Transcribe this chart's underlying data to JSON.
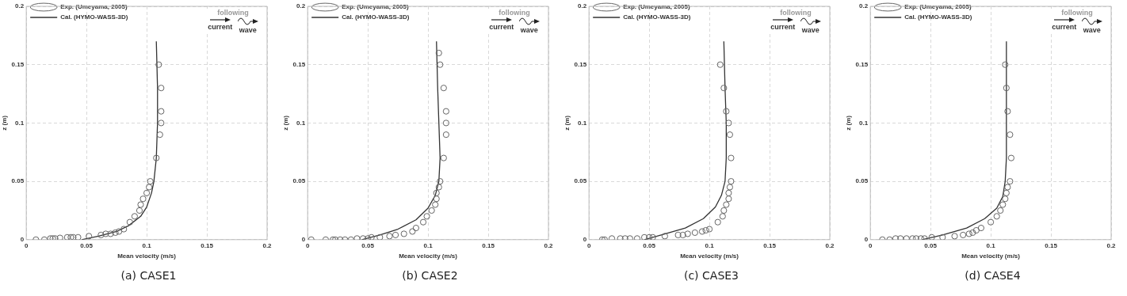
{
  "chart_data": [
    {
      "type": "scatter",
      "title": "(a) CASE1",
      "xlabel": "Mean velocity (m/s)",
      "ylabel": "z (m)",
      "xlim": [
        0,
        0.2
      ],
      "ylim": [
        0,
        0.2
      ],
      "xticks": [
        0,
        0.05,
        0.1,
        0.15,
        0.2
      ],
      "yticks": [
        0,
        0.05,
        0.1,
        0.15,
        0.2
      ],
      "grid": true,
      "legend": "top left",
      "annotations": [
        "following",
        "current",
        "wave"
      ],
      "series": [
        {
          "name": "Exp. (Umeyama, 2005)",
          "type": "scatter",
          "marker": "circle",
          "color": "#666666",
          "x": [
            0.008,
            0.015,
            0.02,
            0.022,
            0.024,
            0.028,
            0.034,
            0.037,
            0.039,
            0.043,
            0.052,
            0.062,
            0.066,
            0.07,
            0.074,
            0.077,
            0.081,
            0.086,
            0.09,
            0.094,
            0.095,
            0.097,
            0.1,
            0.102,
            0.103,
            0.108,
            0.111,
            0.112,
            0.112,
            0.112,
            0.11
          ],
          "values": [
            0,
            0,
            0.001,
            0.001,
            0.001,
            0.0015,
            0.002,
            0.002,
            0.002,
            0.002,
            0.003,
            0.004,
            0.005,
            0.005,
            0.006,
            0.007,
            0.009,
            0.015,
            0.02,
            0.025,
            0.03,
            0.035,
            0.04,
            0.045,
            0.05,
            0.07,
            0.09,
            0.1,
            0.11,
            0.13,
            0.15
          ]
        },
        {
          "name": "Cal. (HYMO-WASS-3D)",
          "type": "line",
          "marker": "none",
          "line_style": "solid",
          "color": "#333333",
          "x": [
            0.046,
            0.06,
            0.075,
            0.085,
            0.095,
            0.1,
            0.104,
            0.106,
            0.108,
            0.109,
            0.109,
            0.108
          ],
          "values": [
            0,
            0.003,
            0.007,
            0.012,
            0.02,
            0.028,
            0.04,
            0.05,
            0.07,
            0.1,
            0.13,
            0.17
          ]
        }
      ]
    },
    {
      "type": "scatter",
      "title": "(b) CASE2",
      "xlabel": "Mean velocity (m/s)",
      "ylabel": "z (m)",
      "xlim": [
        0,
        0.2
      ],
      "ylim": [
        0,
        0.2
      ],
      "xticks": [
        0,
        0.05,
        0.1,
        0.15,
        0.2
      ],
      "yticks": [
        0,
        0.05,
        0.1,
        0.15,
        0.2
      ],
      "grid": true,
      "legend": "top left",
      "annotations": [
        "following",
        "current",
        "wave"
      ],
      "series": [
        {
          "name": "Exp. (Umeyama, 2005)",
          "type": "scatter",
          "marker": "circle",
          "color": "#666666",
          "x": [
            0.003,
            0.015,
            0.021,
            0.023,
            0.027,
            0.031,
            0.036,
            0.041,
            0.046,
            0.05,
            0.053,
            0.06,
            0.068,
            0.073,
            0.08,
            0.087,
            0.09,
            0.096,
            0.099,
            0.103,
            0.106,
            0.107,
            0.107,
            0.109,
            0.11,
            0.113,
            0.115,
            0.115,
            0.115,
            0.113,
            0.11,
            0.109
          ],
          "values": [
            0,
            0,
            0,
            0,
            0,
            0,
            0,
            0.001,
            0.001,
            0.001,
            0.002,
            0.002,
            0.003,
            0.004,
            0.005,
            0.007,
            0.01,
            0.015,
            0.02,
            0.025,
            0.03,
            0.035,
            0.04,
            0.045,
            0.05,
            0.07,
            0.09,
            0.1,
            0.11,
            0.13,
            0.15,
            0.16
          ]
        },
        {
          "name": "Cal. (HYMO-WASS-3D)",
          "type": "line",
          "marker": "none",
          "line_style": "solid",
          "color": "#333333",
          "x": [
            0.045,
            0.06,
            0.075,
            0.09,
            0.1,
            0.106,
            0.109,
            0.11,
            0.109,
            0.108,
            0.107
          ],
          "values": [
            0,
            0.004,
            0.009,
            0.017,
            0.027,
            0.038,
            0.05,
            0.07,
            0.1,
            0.13,
            0.17
          ]
        }
      ]
    },
    {
      "type": "scatter",
      "title": "(c) CASE3",
      "xlabel": "Mean velocity (m/s)",
      "ylabel": "z (m)",
      "xlim": [
        0,
        0.2
      ],
      "ylim": [
        0,
        0.2
      ],
      "xticks": [
        0,
        0.05,
        0.1,
        0.15,
        0.2
      ],
      "yticks": [
        0,
        0.05,
        0.1,
        0.15,
        0.2
      ],
      "grid": true,
      "legend": "top left",
      "annotations": [
        "following",
        "current",
        "wave"
      ],
      "series": [
        {
          "name": "Exp. (Umeyama, 2005)",
          "type": "scatter",
          "marker": "circle",
          "color": "#666666",
          "x": [
            0.011,
            0.013,
            0.019,
            0.026,
            0.03,
            0.034,
            0.04,
            0.046,
            0.05,
            0.053,
            0.063,
            0.074,
            0.078,
            0.082,
            0.088,
            0.094,
            0.097,
            0.1,
            0.107,
            0.111,
            0.112,
            0.114,
            0.116,
            0.116,
            0.117,
            0.118,
            0.118,
            0.117,
            0.116,
            0.114,
            0.112,
            0.109
          ],
          "values": [
            0,
            0,
            0.001,
            0.001,
            0.001,
            0.001,
            0.001,
            0.002,
            0.002,
            0.002,
            0.003,
            0.004,
            0.004,
            0.005,
            0.006,
            0.007,
            0.008,
            0.009,
            0.015,
            0.02,
            0.025,
            0.03,
            0.035,
            0.04,
            0.045,
            0.05,
            0.07,
            0.09,
            0.1,
            0.11,
            0.13,
            0.15
          ]
        },
        {
          "name": "Cal. (HYMO-WASS-3D)",
          "type": "line",
          "marker": "none",
          "line_style": "solid",
          "color": "#333333",
          "x": [
            0.046,
            0.06,
            0.08,
            0.095,
            0.105,
            0.11,
            0.113,
            0.114,
            0.114,
            0.113,
            0.112
          ],
          "values": [
            0,
            0.004,
            0.01,
            0.018,
            0.028,
            0.038,
            0.05,
            0.07,
            0.1,
            0.13,
            0.17
          ]
        }
      ]
    },
    {
      "type": "scatter",
      "title": "(d) CASE4",
      "xlabel": "Mean velocity (m/s)",
      "ylabel": "z (m)",
      "xlim": [
        0,
        0.2
      ],
      "ylim": [
        0,
        0.2
      ],
      "xticks": [
        0,
        0.05,
        0.1,
        0.15,
        0.2
      ],
      "yticks": [
        0,
        0.05,
        0.1,
        0.15,
        0.2
      ],
      "grid": true,
      "legend": "top left",
      "annotations": [
        "following",
        "current",
        "wave"
      ],
      "series": [
        {
          "name": "Exp. (Umeyama, 2005)",
          "type": "scatter",
          "marker": "circle",
          "color": "#666666",
          "x": [
            0.01,
            0.016,
            0.021,
            0.025,
            0.03,
            0.035,
            0.038,
            0.042,
            0.045,
            0.051,
            0.06,
            0.07,
            0.077,
            0.082,
            0.085,
            0.088,
            0.092,
            0.1,
            0.105,
            0.108,
            0.11,
            0.112,
            0.113,
            0.114,
            0.116,
            0.117,
            0.116,
            0.114,
            0.113,
            0.112
          ],
          "values": [
            0,
            0,
            0.001,
            0.001,
            0.001,
            0.001,
            0.001,
            0.001,
            0.001,
            0.002,
            0.002,
            0.003,
            0.004,
            0.005,
            0.006,
            0.008,
            0.01,
            0.015,
            0.02,
            0.025,
            0.03,
            0.035,
            0.04,
            0.045,
            0.05,
            0.07,
            0.09,
            0.11,
            0.13,
            0.15
          ]
        },
        {
          "name": "Cal. (HYMO-WASS-3D)",
          "type": "line",
          "marker": "none",
          "line_style": "solid",
          "color": "#333333",
          "x": [
            0.043,
            0.06,
            0.08,
            0.095,
            0.105,
            0.11,
            0.112,
            0.113,
            0.113,
            0.113,
            0.113
          ],
          "values": [
            0,
            0.004,
            0.01,
            0.018,
            0.027,
            0.037,
            0.05,
            0.07,
            0.1,
            0.13,
            0.17
          ]
        }
      ]
    }
  ]
}
